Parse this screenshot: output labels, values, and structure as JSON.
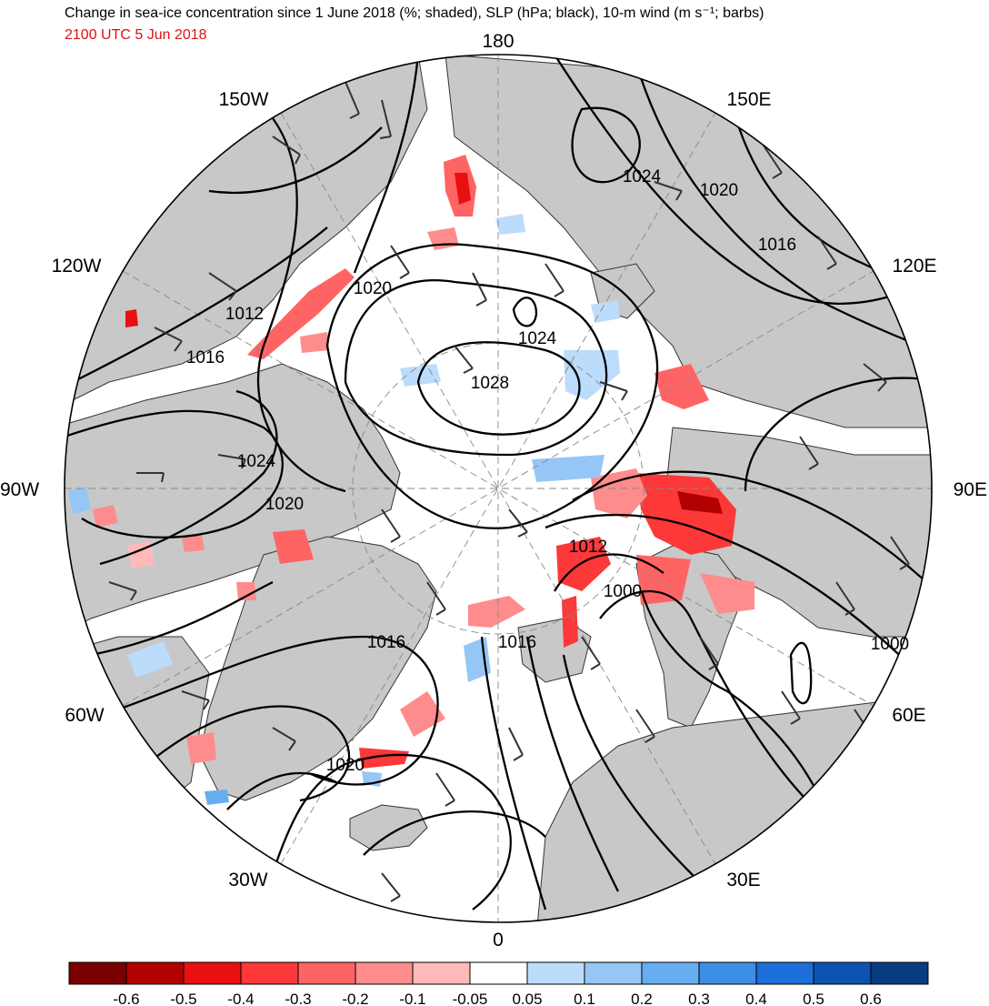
{
  "title": "Change in sea-ice concentration since 1 June 2018 (%; shaded), SLP (hPa; black), 10-m wind (m s⁻¹; barbs)",
  "subtitle": "2100 UTC 5 Jun 2018",
  "colors": {
    "land": "#c8c8c8",
    "ocean": "#ffffff",
    "isobar": "#000000",
    "barb": "#333333",
    "subtitle": "#e01010"
  },
  "longitude_labels": {
    "top": "180",
    "bottom": "0",
    "left": "90W",
    "right": "90E",
    "lon150W": "150W",
    "lon150E": "150E",
    "lon120W": "120W",
    "lon120E": "120E",
    "lon60W": "60W",
    "lon60E": "60E",
    "lon30W": "30W",
    "lon30E": "30E"
  },
  "isobar_labels": [
    "1024",
    "1020",
    "1016",
    "1020",
    "1024",
    "1028",
    "1012",
    "1016",
    "1024",
    "1020",
    "1012",
    "1000",
    "1000",
    "1016",
    "1016",
    "1020"
  ],
  "colorbar": {
    "colors": [
      "#7a0000",
      "#b00000",
      "#e81010",
      "#fc3838",
      "#ff6464",
      "#ff8c8c",
      "#ffb9b9",
      "#ffffff",
      "#bcdcfb",
      "#96c6f6",
      "#66aef0",
      "#3d8ee6",
      "#1c6ed8",
      "#0c52b0",
      "#083c80"
    ],
    "ticks": [
      "-0.6",
      "-0.5",
      "-0.4",
      "-0.3",
      "-0.2",
      "-0.1",
      "-0.05",
      "0.05",
      "0.1",
      "0.2",
      "0.3",
      "0.4",
      "0.5",
      "0.6"
    ]
  }
}
